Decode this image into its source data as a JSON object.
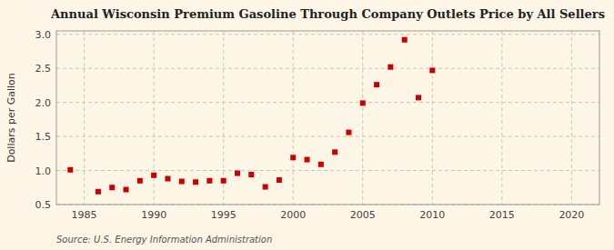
{
  "chart_data": {
    "type": "scatter",
    "title": "Annual Wisconsin Premium Gasoline Through Company Outlets Price by All Sellers",
    "ylabel": "Dollars per Gallon",
    "annotation": "Source: U.S. Energy Information Administration",
    "color": "#cc0000",
    "marker": "square",
    "grid": true,
    "xlim": [
      1983,
      2022
    ],
    "ylim": [
      0.5,
      3.05
    ],
    "xticks": [
      1985,
      1990,
      1995,
      2000,
      2005,
      2010,
      2015,
      2020
    ],
    "yticks": [
      0.5,
      {
        "value": 1.0,
        "label": "1.0"
      },
      1.5,
      {
        "value": 2.0,
        "label": "2.0"
      },
      2.5,
      {
        "value": 3.0,
        "label": "3.0"
      }
    ],
    "x": [
      1984,
      1986,
      1987,
      1988,
      1989,
      1990,
      1991,
      1992,
      1993,
      1994,
      1995,
      1996,
      1997,
      1998,
      1999,
      2000,
      2001,
      2002,
      2003,
      2004,
      2005,
      2006,
      2007,
      2008,
      2009,
      2010
    ],
    "values": [
      1.01,
      0.69,
      0.75,
      0.72,
      0.85,
      0.93,
      0.88,
      0.84,
      0.83,
      0.85,
      0.85,
      0.96,
      0.94,
      0.76,
      0.86,
      1.19,
      1.16,
      1.09,
      1.27,
      1.56,
      1.99,
      2.26,
      2.52,
      2.92,
      2.07,
      2.47
    ]
  }
}
